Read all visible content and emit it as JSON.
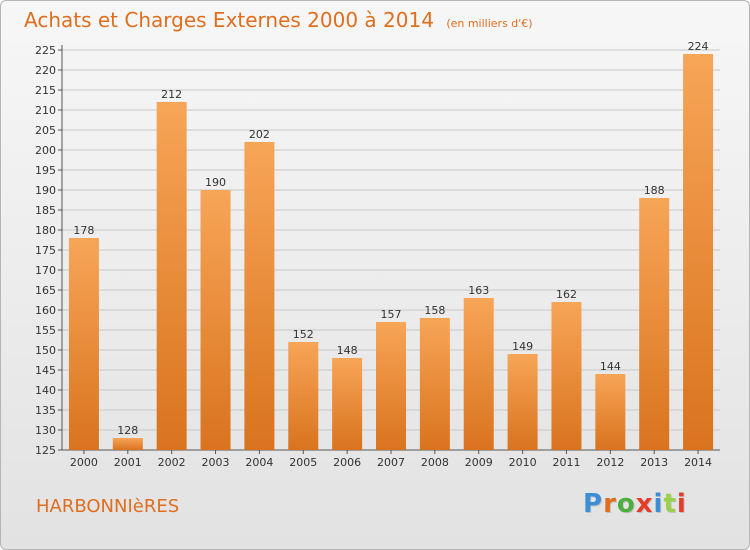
{
  "header": {
    "title": "Achats et Charges Externes 2000 à 2014",
    "unit": "(en milliers d'€)"
  },
  "footer": {
    "place": "HARBONNIèRES",
    "logo": "Proxiti",
    "logo_colors": [
      "#3c8fd6",
      "#e06e1f",
      "#4cae3c",
      "#e53c2a",
      "#3c8fd6",
      "#9ad14b",
      "#e53c2a"
    ]
  },
  "colors": {
    "bar_light": "#f7a557",
    "bar_dark": "#d9731e",
    "accent": "#e06e1f",
    "grid": "#c8c8c8"
  },
  "chart_data": {
    "type": "bar",
    "title": "Achats et Charges Externes 2000 à 2014",
    "unit": "(en milliers d'€)",
    "categories": [
      "2000",
      "2001",
      "2002",
      "2003",
      "2004",
      "2005",
      "2006",
      "2007",
      "2008",
      "2009",
      "2010",
      "2011",
      "2012",
      "2013",
      "2014"
    ],
    "values": [
      178,
      128,
      212,
      190,
      202,
      152,
      148,
      157,
      158,
      163,
      149,
      162,
      144,
      188,
      224
    ],
    "ylim": [
      125,
      225
    ],
    "yticks": [
      125,
      130,
      135,
      140,
      145,
      150,
      155,
      160,
      165,
      170,
      175,
      180,
      185,
      190,
      195,
      200,
      205,
      210,
      215,
      220,
      225
    ],
    "grid": true,
    "legend": "none"
  }
}
